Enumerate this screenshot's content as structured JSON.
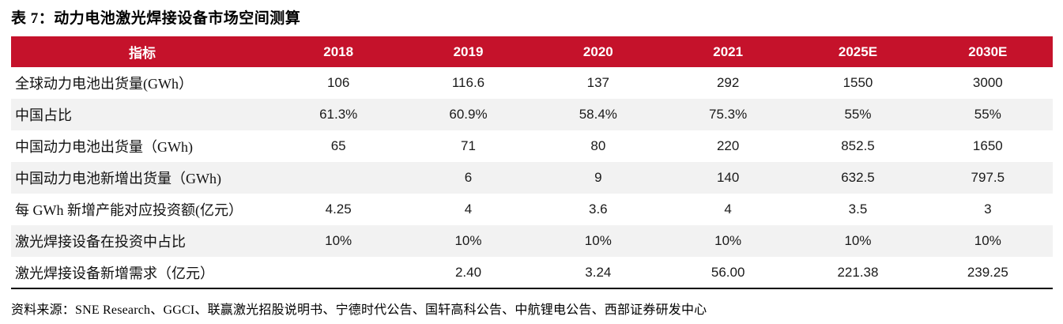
{
  "title": "表 7：动力电池激光焊接设备市场空间测算",
  "colors": {
    "header_bg": "#C5122B",
    "row_alt_bg": "#F2F2F2",
    "table_bottom_border": "#000000"
  },
  "table": {
    "header": [
      "指标",
      "2018",
      "2019",
      "2020",
      "2021",
      "2025E",
      "2030E"
    ],
    "rows": [
      {
        "label": "全球动力电池出货量(GWh）",
        "values": [
          "106",
          "116.6",
          "137",
          "292",
          "1550",
          "3000"
        ]
      },
      {
        "label": "中国占比",
        "values": [
          "61.3%",
          "60.9%",
          "58.4%",
          "75.3%",
          "55%",
          "55%"
        ]
      },
      {
        "label": "中国动力电池出货量（GWh)",
        "values": [
          "65",
          "71",
          "80",
          "220",
          "852.5",
          "1650"
        ]
      },
      {
        "label": "中国动力电池新增出货量（GWh)",
        "values": [
          "",
          "6",
          "9",
          "140",
          "632.5",
          "797.5"
        ]
      },
      {
        "label": "每 GWh 新增产能对应投资额(亿元）",
        "values": [
          "4.25",
          "4",
          "3.6",
          "4",
          "3.5",
          "3"
        ]
      },
      {
        "label": "激光焊接设备在投资中占比",
        "values": [
          "10%",
          "10%",
          "10%",
          "10%",
          "10%",
          "10%"
        ]
      },
      {
        "label": "激光焊接设备新增需求（亿元）",
        "values": [
          "",
          "2.40",
          "3.24",
          "56.00",
          "221.38",
          "239.25"
        ]
      }
    ]
  },
  "source": "资料来源：SNE Research、GGCI、联赢激光招股说明书、宁德时代公告、国轩高科公告、中航锂电公告、西部证券研发中心"
}
